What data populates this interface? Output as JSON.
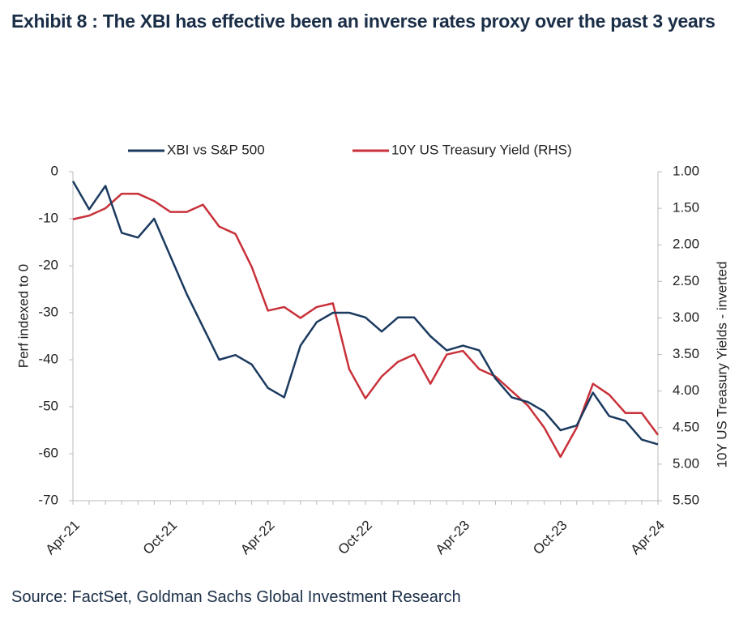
{
  "chart_data": {
    "type": "line",
    "title": "Exhibit 8 : The XBI has effective been an inverse rates proxy over the past 3 years",
    "source": "Source: FactSet, Goldman Sachs Global Investment Research",
    "ylabel": "Perf indexed to 0",
    "y2label": "10Y US Treasury Yields - inverted",
    "categories": [
      "Apr-21",
      null,
      null,
      null,
      null,
      null,
      "Oct-21",
      null,
      null,
      null,
      null,
      null,
      "Apr-22",
      null,
      null,
      null,
      null,
      null,
      "Oct-22",
      null,
      null,
      null,
      null,
      null,
      "Apr-23",
      null,
      null,
      null,
      null,
      null,
      "Oct-23",
      null,
      null,
      null,
      null,
      null,
      "Apr-24"
    ],
    "series": [
      {
        "name": "XBI vs S&P 500",
        "color": "#1b3a5f",
        "values": [
          -2,
          -8,
          -3,
          -13,
          -14,
          -10,
          -18,
          -26,
          -33,
          -40,
          -39,
          -41,
          -46,
          -48,
          -37,
          -32,
          -30,
          -30,
          -31,
          -34,
          -31,
          -31,
          -35,
          -38,
          -37,
          -38,
          -44,
          -48,
          -49,
          -51,
          -55,
          -54,
          -47,
          -52,
          -53,
          -57,
          -58
        ]
      },
      {
        "name": "10Y US Treasury Yield (RHS)",
        "color": "#c8313a",
        "axis": "y2",
        "values": [
          1.65,
          1.6,
          1.5,
          1.3,
          1.3,
          1.4,
          1.55,
          1.55,
          1.45,
          1.75,
          1.85,
          2.3,
          2.9,
          2.85,
          3.0,
          2.85,
          2.8,
          3.7,
          4.1,
          3.8,
          3.6,
          3.5,
          3.9,
          3.5,
          3.45,
          3.7,
          3.8,
          4.0,
          4.2,
          4.5,
          4.9,
          4.5,
          3.9,
          4.05,
          4.3,
          4.3,
          4.6
        ]
      }
    ],
    "ylim": [
      -70,
      0
    ],
    "yticks": [
      0,
      -10,
      -20,
      -30,
      -40,
      -50,
      -60,
      -70
    ],
    "y2lim": [
      1,
      5.5
    ],
    "y2_inverted": true,
    "y2ticks": [
      {
        "value": 1,
        "label": "1.00"
      },
      {
        "value": 1.5,
        "label": "1.50"
      },
      {
        "value": 2,
        "label": "2.00"
      },
      {
        "value": 2.5,
        "label": "2.50"
      },
      {
        "value": 3,
        "label": "3.00"
      },
      {
        "value": 3.5,
        "label": "3.50"
      },
      {
        "value": 4,
        "label": "4.00"
      },
      {
        "value": 4.5,
        "label": "4.50"
      },
      {
        "value": 5,
        "label": "5.00"
      },
      {
        "value": 5.5,
        "label": "5.50"
      }
    ],
    "legend": "top",
    "grid": false
  }
}
